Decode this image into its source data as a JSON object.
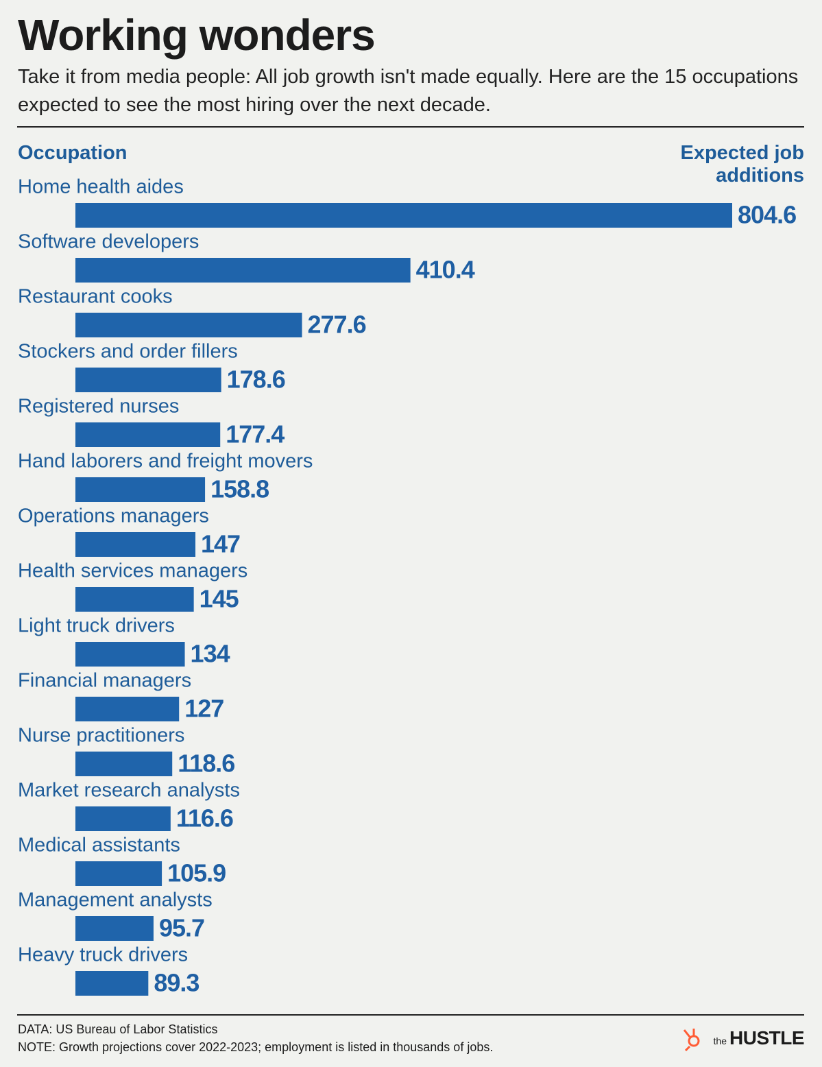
{
  "chart_data": {
    "type": "bar",
    "title": "Working wonders",
    "subtitle": "Take it from media people: All job growth isn't made equally. Here are the 15 occupations expected to see the most hiring over the next decade.",
    "category_axis_label": "Occupation",
    "value_axis_label": "Expected job additions",
    "categories": [
      "Home health aides",
      "Software developers",
      "Restaurant cooks",
      "Stockers and order fillers",
      "Registered nurses",
      "Hand laborers and freight movers",
      "Operations managers",
      "Health services managers",
      "Light truck drivers",
      "Financial managers",
      "Nurse practitioners",
      "Market research analysts",
      "Medical assistants",
      "Management analysts",
      "Heavy truck drivers"
    ],
    "values": [
      804.6,
      410.4,
      277.6,
      178.6,
      177.4,
      158.8,
      147,
      145,
      134,
      127,
      118.6,
      116.6,
      105.9,
      95.7,
      89.3
    ],
    "color": "#1f64ab",
    "source": "DATA: US Bureau of Labor Statistics",
    "note": "NOTE: Growth projections cover 2022-2023; employment is listed in thousands of jobs.",
    "brand_prefix": "the",
    "brand": "HUSTLE"
  }
}
